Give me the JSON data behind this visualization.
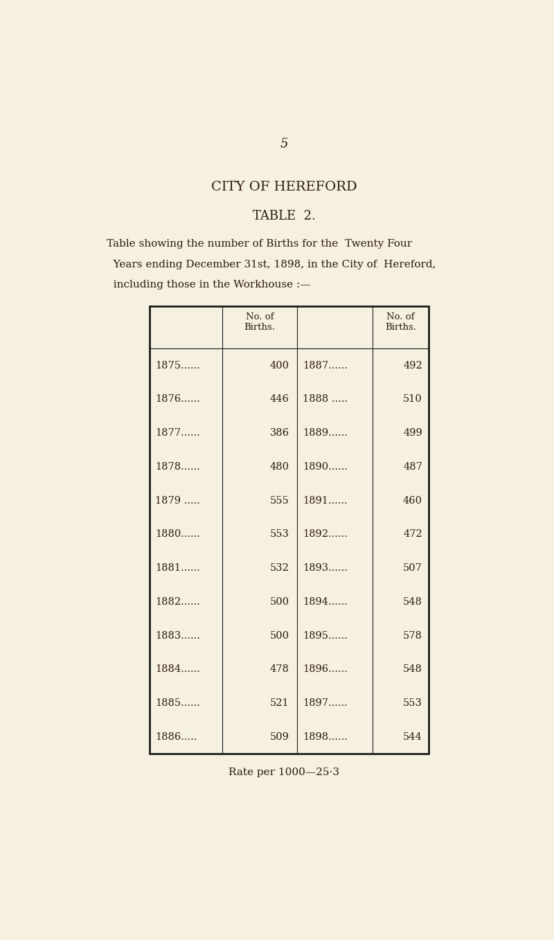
{
  "page_number": "5",
  "title1": "CITY OF HEREFORD",
  "title2": "TABLE  2.",
  "desc_lines": [
    "Table showing the number of Births for the  Twenty Four",
    "  Years ending December 31st, 1898, in the City of  Hereford,",
    "  including those in the Workhouse :—"
  ],
  "col_header1": "No. of\nBirths.",
  "col_header2": "No. of\nBirths.",
  "left_years": [
    "1875......",
    "1876......",
    "1877......",
    "1878......",
    "1879 .....",
    "1880......",
    "1881......",
    "1882......",
    "1883......",
    "1884......",
    "1885......",
    "1886....."
  ],
  "left_values": [
    "400",
    "446",
    "386",
    "480",
    "555",
    "553",
    "532",
    "500",
    "500",
    "478",
    "521",
    "509"
  ],
  "right_years": [
    "1887......",
    "1888 .....",
    "1889......",
    "1890......",
    "1891......",
    "1892......",
    "1893......",
    "1894......",
    "1895......",
    "1896......",
    "1897......",
    "1898......"
  ],
  "right_values": [
    "492",
    "510",
    "499",
    "487",
    "460",
    "472",
    "507",
    "548",
    "578",
    "548",
    "553",
    "544"
  ],
  "rate_text": "Rate per 1000—25·3",
  "bg_color": "#f5f0e0",
  "text_color": "#2a1a0a",
  "table_border_color": "#1a1a1a"
}
